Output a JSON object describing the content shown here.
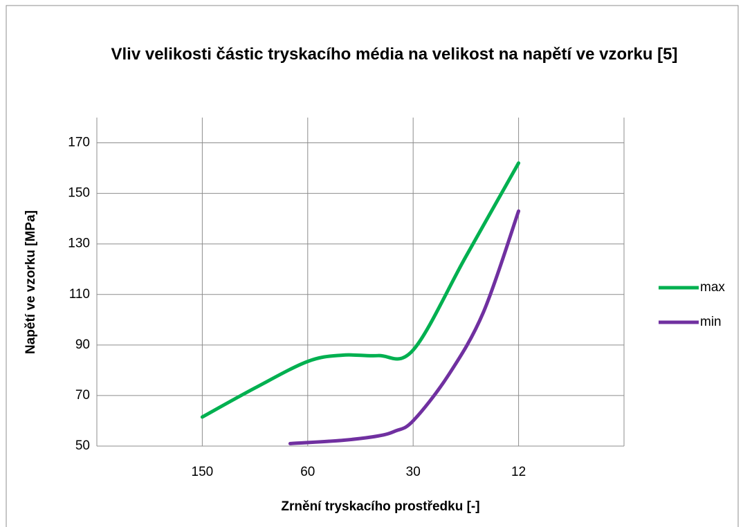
{
  "chart_data": {
    "type": "line",
    "title": "Vliv velikosti částic tryskacího média na velikost na napětí ve vzorku [5]",
    "x_label": "Zrnění tryskacího prostředku [-]",
    "y_label": "Napětí ve vzorku [MPa]",
    "xlim": [
      0,
      30
    ],
    "xticks": [
      {
        "value": 6,
        "label": "150"
      },
      {
        "value": 12,
        "label": "60"
      },
      {
        "value": 18,
        "label": "30"
      },
      {
        "value": 24,
        "label": "12"
      }
    ],
    "ylim": [
      50,
      180
    ],
    "yticks": [
      50,
      70,
      90,
      110,
      130,
      150,
      170
    ],
    "grid": true,
    "legend": "right",
    "series": [
      {
        "name": "max",
        "color": "#00b050",
        "x": [
          6,
          9,
          12,
          14,
          16,
          18,
          21,
          24
        ],
        "values": [
          61.5,
          73,
          83.5,
          86,
          85.8,
          88,
          125,
          162
        ]
      },
      {
        "name": "min",
        "color": "#7030a0",
        "x": [
          11,
          14,
          16,
          17,
          18,
          20,
          22,
          24
        ],
        "values": [
          51,
          52.3,
          54,
          56,
          60,
          78,
          103,
          143
        ]
      }
    ]
  }
}
